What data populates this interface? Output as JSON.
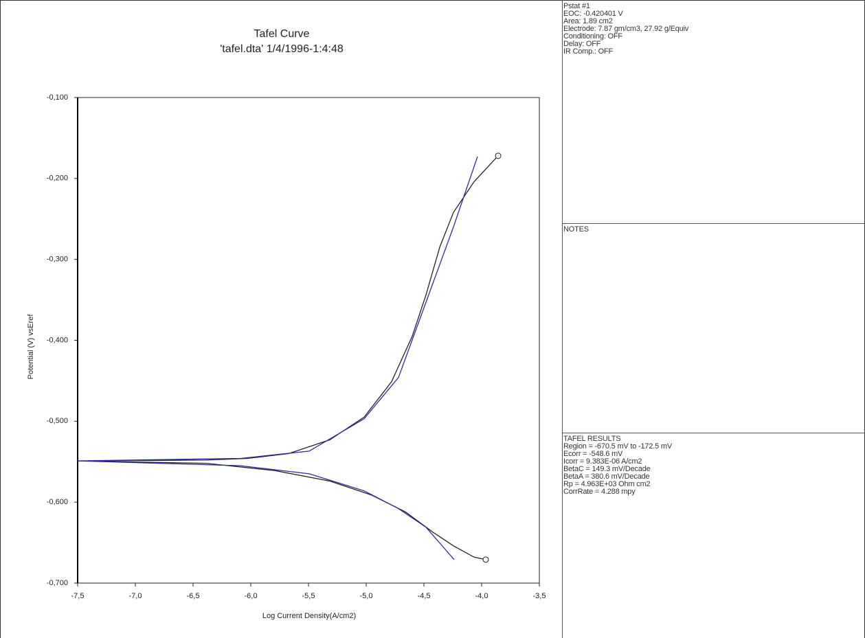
{
  "chart_data": {
    "type": "line",
    "title": "Tafel Curve",
    "subtitle": "'tafel.dta' 1/4/1996-1:4:48",
    "x_label": "Log Current Density(A/cm2)",
    "y_label": "Potential (V) vsEref",
    "xlim": [
      -7.5,
      -3.5
    ],
    "xticks": [
      {
        "value": -7.5,
        "label": "-7,5"
      },
      {
        "value": -7.0,
        "label": "-7,0"
      },
      {
        "value": -6.5,
        "label": "-6,5"
      },
      {
        "value": -6.0,
        "label": "-6,0"
      },
      {
        "value": -5.5,
        "label": "-5,5"
      },
      {
        "value": -5.0,
        "label": "-5,0"
      },
      {
        "value": -4.5,
        "label": "-4,5"
      },
      {
        "value": -4.0,
        "label": "-4,0"
      },
      {
        "value": -3.5,
        "label": "-3,5"
      }
    ],
    "ylim": [
      -0.7,
      -0.1
    ],
    "yticks": [
      {
        "value": -0.7,
        "label": "-0,700"
      },
      {
        "value": -0.6,
        "label": "-0,600"
      },
      {
        "value": -0.5,
        "label": "-0,500"
      },
      {
        "value": -0.4,
        "label": "-0,400"
      },
      {
        "value": -0.3,
        "label": "-0,300"
      },
      {
        "value": -0.2,
        "label": "-0,200"
      },
      {
        "value": -0.1,
        "label": "-0,100"
      }
    ],
    "grid": false,
    "series": [
      {
        "color": "#222222",
        "end_marker": true,
        "x": [
          -7.5,
          -6.387,
          -6.03,
          -5.673,
          -5.315,
          -5.018,
          -4.78,
          -4.601,
          -4.482,
          -4.363,
          -4.244,
          -4.065,
          -3.857
        ],
        "values": [
          -0.549,
          -0.548,
          -0.546,
          -0.54,
          -0.523,
          -0.495,
          -0.451,
          -0.395,
          -0.344,
          -0.285,
          -0.242,
          -0.204,
          -0.172
        ]
      },
      {
        "color": "#222222",
        "end_marker": true,
        "x": [
          -7.5,
          -6.387,
          -5.792,
          -5.315,
          -4.958,
          -4.661,
          -4.423,
          -4.244,
          -4.065,
          -3.964
        ],
        "values": [
          -0.549,
          -0.552,
          -0.561,
          -0.574,
          -0.591,
          -0.612,
          -0.637,
          -0.654,
          -0.668,
          -0.671
        ]
      },
      {
        "color": "#2a2aa0",
        "end_marker": false,
        "x": [
          -7.5,
          -6.089,
          -5.494,
          -5.018,
          -4.72,
          -4.482,
          -4.244,
          -4.036
        ],
        "values": [
          -0.549,
          -0.546,
          -0.537,
          -0.497,
          -0.446,
          -0.353,
          -0.26,
          -0.173
        ]
      },
      {
        "color": "#2a2aa0",
        "end_marker": false,
        "x": [
          -7.5,
          -6.089,
          -5.494,
          -5.018,
          -4.72,
          -4.482,
          -4.238
        ],
        "values": [
          -0.549,
          -0.555,
          -0.565,
          -0.586,
          -0.608,
          -0.631,
          -0.671
        ]
      }
    ]
  },
  "panels": [
    {
      "lines": [
        "Pstat #1",
        "EOC: -0.420401 V",
        "Area: 1.89 cm2",
        "Electrode: 7.87 gm/cm3, 27.92 g/Equiv",
        "Conditioning: OFF",
        "Delay: OFF",
        "IR Comp.: OFF"
      ]
    },
    {
      "lines": [
        "NOTES"
      ]
    },
    {
      "lines": [
        "TAFEL RESULTS",
        "Region = -670.5 mV to -172.5 mV",
        "Ecorr = -548.6 mV",
        "Icorr = 9.383E-06 A/cm2",
        "BetaC = 149.3 mV/Decade",
        "BetaA = 380.6 mV/Decade",
        "Rp = 4.963E+03 Ohm cm2",
        "CorrRate = 4.288 mpy"
      ]
    }
  ]
}
